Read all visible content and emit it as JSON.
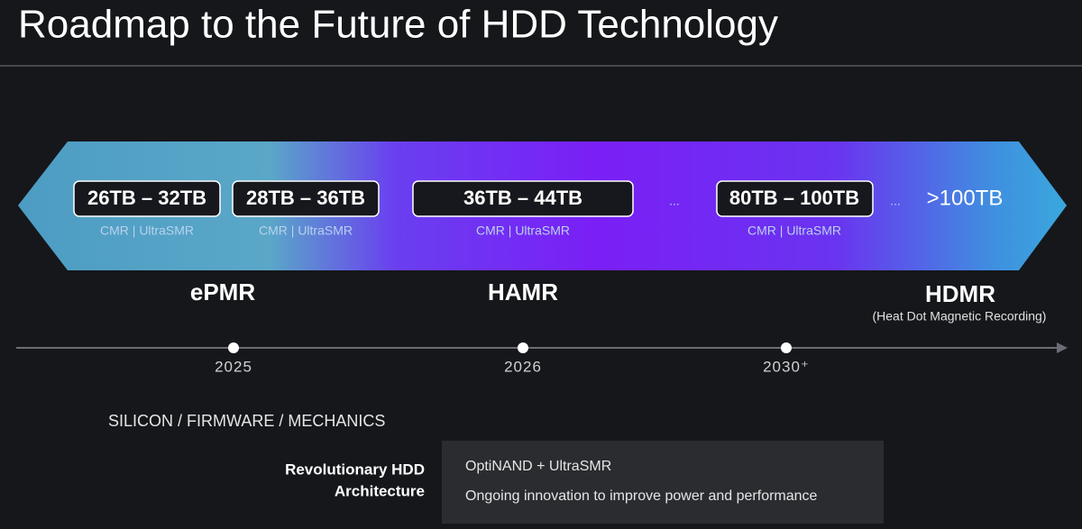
{
  "title": "Roadmap to the Future of HDD Technology",
  "roadmap": {
    "capacities": [
      {
        "label": "26TB – 32TB",
        "sub": "CMR | UltraSMR"
      },
      {
        "label": "28TB – 36TB",
        "sub": "CMR | UltraSMR"
      },
      {
        "label": "36TB – 44TB",
        "sub": "CMR | UltraSMR"
      },
      {
        "label": "80TB – 100TB",
        "sub": "CMR | UltraSMR"
      },
      {
        "label": ">100TB"
      }
    ],
    "separators": [
      "...",
      "..."
    ]
  },
  "technologies": [
    {
      "label": "ePMR"
    },
    {
      "label": "HAMR"
    },
    {
      "label": "HDMR",
      "subtitle": "(Heat Dot Magnetic Recording)"
    }
  ],
  "timeline": {
    "years": [
      "2025",
      "2026",
      "2030⁺"
    ]
  },
  "footer": {
    "heading": "SILICON / FIRMWARE / MECHANICS",
    "label_lines": [
      "Revolutionary HDD",
      "Architecture"
    ],
    "items": [
      "OptiNAND + UltraSMR",
      "Ongoing innovation to improve power and performance"
    ]
  }
}
